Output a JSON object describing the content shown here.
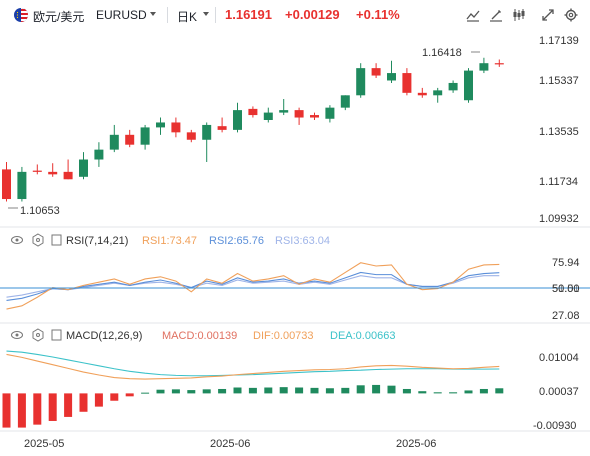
{
  "header": {
    "pair_name": "欧元/美元",
    "pair_symbol": "EURUSD",
    "interval": "日K",
    "price": "1.16191",
    "change": "+0.00129",
    "change_pct": "+0.11%",
    "icons": [
      "chart-type-icon",
      "draw-icon",
      "indicator-icon",
      "expand-icon",
      "settings-icon"
    ],
    "flag_icon": "eu-us-flag-icon"
  },
  "colors": {
    "up": "#1f8a5e",
    "down": "#e8312f",
    "rsi1": "#f0a05a",
    "rsi2": "#5b8fd9",
    "rsi3": "#9fb4e8",
    "macd_dif": "#f0a05a",
    "macd_dea": "#3cc2c9",
    "ref_line": "#3a8fd6"
  },
  "main_panel": {
    "y_labels": [
      "1.17139",
      "1.15337",
      "1.13535",
      "1.11734",
      "1.09932"
    ],
    "high_marker": "1.16418",
    "low_marker": "1.10653"
  },
  "rsi_panel": {
    "title": "RSI(7,14,21)",
    "rsi1": "RSI1:73.47",
    "rsi2": "RSI2:65.76",
    "rsi3": "RSI3:63.04",
    "y_labels": [
      "75.94",
      "50.00",
      "27.08"
    ],
    "overlap_label": "51.51"
  },
  "macd_panel": {
    "title": "MACD(12,26,9)",
    "macd": "MACD:0.00139",
    "dif": "DIF:0.00733",
    "dea": "DEA:0.00663",
    "y_labels": [
      "0.01004",
      "0.00037",
      "-0.00930"
    ]
  },
  "x_labels": [
    "2025-05",
    "2025-06",
    "2025-06"
  ],
  "chart_data": {
    "type": "candlestick",
    "price_range": [
      1.09932,
      1.17139
    ],
    "candles": [
      {
        "o": 1.119,
        "h": 1.122,
        "l": 1.106,
        "c": 1.107
      },
      {
        "o": 1.107,
        "h": 1.12,
        "l": 1.106,
        "c": 1.118
      },
      {
        "o": 1.1185,
        "h": 1.121,
        "l": 1.117,
        "c": 1.118
      },
      {
        "o": 1.118,
        "h": 1.1215,
        "l": 1.116,
        "c": 1.117
      },
      {
        "o": 1.118,
        "h": 1.123,
        "l": 1.115,
        "c": 1.115
      },
      {
        "o": 1.116,
        "h": 1.126,
        "l": 1.115,
        "c": 1.123
      },
      {
        "o": 1.123,
        "h": 1.13,
        "l": 1.12,
        "c": 1.127
      },
      {
        "o": 1.127,
        "h": 1.137,
        "l": 1.126,
        "c": 1.133
      },
      {
        "o": 1.133,
        "h": 1.135,
        "l": 1.128,
        "c": 1.129
      },
      {
        "o": 1.129,
        "h": 1.137,
        "l": 1.127,
        "c": 1.136
      },
      {
        "o": 1.136,
        "h": 1.14,
        "l": 1.133,
        "c": 1.138
      },
      {
        "o": 1.138,
        "h": 1.14,
        "l": 1.132,
        "c": 1.134
      },
      {
        "o": 1.134,
        "h": 1.135,
        "l": 1.13,
        "c": 1.131
      },
      {
        "o": 1.131,
        "h": 1.138,
        "l": 1.122,
        "c": 1.137
      },
      {
        "o": 1.1365,
        "h": 1.14,
        "l": 1.134,
        "c": 1.135
      },
      {
        "o": 1.135,
        "h": 1.146,
        "l": 1.134,
        "c": 1.143
      },
      {
        "o": 1.1435,
        "h": 1.1445,
        "l": 1.14,
        "c": 1.141
      },
      {
        "o": 1.139,
        "h": 1.144,
        "l": 1.138,
        "c": 1.142
      },
      {
        "o": 1.142,
        "h": 1.1475,
        "l": 1.141,
        "c": 1.143
      },
      {
        "o": 1.143,
        "h": 1.144,
        "l": 1.137,
        "c": 1.14
      },
      {
        "o": 1.141,
        "h": 1.142,
        "l": 1.139,
        "c": 1.14
      },
      {
        "o": 1.1395,
        "h": 1.145,
        "l": 1.138,
        "c": 1.144
      },
      {
        "o": 1.144,
        "h": 1.149,
        "l": 1.143,
        "c": 1.149
      },
      {
        "o": 1.149,
        "h": 1.162,
        "l": 1.148,
        "c": 1.16
      },
      {
        "o": 1.16,
        "h": 1.162,
        "l": 1.156,
        "c": 1.157
      },
      {
        "o": 1.155,
        "h": 1.163,
        "l": 1.154,
        "c": 1.158
      },
      {
        "o": 1.158,
        "h": 1.16,
        "l": 1.149,
        "c": 1.15
      },
      {
        "o": 1.15,
        "h": 1.152,
        "l": 1.148,
        "c": 1.149
      },
      {
        "o": 1.149,
        "h": 1.152,
        "l": 1.146,
        "c": 1.151
      },
      {
        "o": 1.151,
        "h": 1.155,
        "l": 1.15,
        "c": 1.154
      },
      {
        "o": 1.147,
        "h": 1.16,
        "l": 1.146,
        "c": 1.159
      },
      {
        "o": 1.159,
        "h": 1.1642,
        "l": 1.158,
        "c": 1.162
      },
      {
        "o": 1.162,
        "h": 1.1635,
        "l": 1.1605,
        "c": 1.1619
      }
    ],
    "rsi_range": [
      20,
      85
    ],
    "rsi1": [
      32,
      35,
      43,
      52,
      50,
      54,
      57,
      60,
      55,
      60,
      62,
      58,
      48,
      60,
      56,
      65,
      58,
      60,
      63,
      55,
      60,
      57,
      66,
      75,
      72,
      73,
      55,
      50,
      51,
      57,
      69,
      73,
      73.47
    ],
    "rsi2": [
      40,
      42,
      46,
      51,
      50,
      53,
      55,
      57,
      54,
      57,
      59,
      56,
      52,
      58,
      55,
      61,
      57,
      58,
      60,
      56,
      58,
      56,
      61,
      66,
      64,
      64,
      55,
      53,
      53,
      57,
      63,
      65,
      65.76
    ],
    "rsi3": [
      43,
      45,
      48,
      51,
      50,
      52,
      54,
      56,
      54,
      56,
      57,
      55,
      52,
      56,
      54,
      59,
      56,
      57,
      58,
      55,
      57,
      55,
      59,
      63,
      61,
      61,
      55,
      53,
      53,
      56,
      61,
      63,
      63.04
    ],
    "macd_range": [
      -0.0105,
      0.0118
    ],
    "macd_hist": [
      -0.0093,
      -0.0093,
      -0.0085,
      -0.0075,
      -0.0064,
      -0.005,
      -0.0036,
      -0.002,
      -0.0008,
      0.0002,
      0.001,
      0.0011,
      0.0009,
      0.0011,
      0.0012,
      0.0016,
      0.0015,
      0.0016,
      0.0017,
      0.0016,
      0.0015,
      0.0014,
      0.0015,
      0.0022,
      0.0023,
      0.0021,
      0.0012,
      0.0006,
      0.0003,
      0.0003,
      0.0008,
      0.0012,
      0.00139
    ],
    "dif": [
      0.0106,
      0.0098,
      0.0088,
      0.0078,
      0.0068,
      0.0058,
      0.005,
      0.0043,
      0.004,
      0.0039,
      0.004,
      0.0041,
      0.0042,
      0.0045,
      0.0047,
      0.0051,
      0.0054,
      0.0057,
      0.006,
      0.0062,
      0.0064,
      0.0065,
      0.0067,
      0.0072,
      0.0075,
      0.0076,
      0.0074,
      0.0071,
      0.0069,
      0.0067,
      0.0068,
      0.0071,
      0.00733
    ],
    "dea": [
      0.0115,
      0.0112,
      0.0106,
      0.0099,
      0.0091,
      0.0083,
      0.0075,
      0.0067,
      0.006,
      0.0055,
      0.0051,
      0.0049,
      0.0048,
      0.0048,
      0.0049,
      0.005,
      0.0051,
      0.0053,
      0.0055,
      0.0057,
      0.0059,
      0.006,
      0.0062,
      0.0063,
      0.0065,
      0.0066,
      0.0067,
      0.0067,
      0.0067,
      0.0066,
      0.0066,
      0.0066,
      0.00663
    ]
  }
}
